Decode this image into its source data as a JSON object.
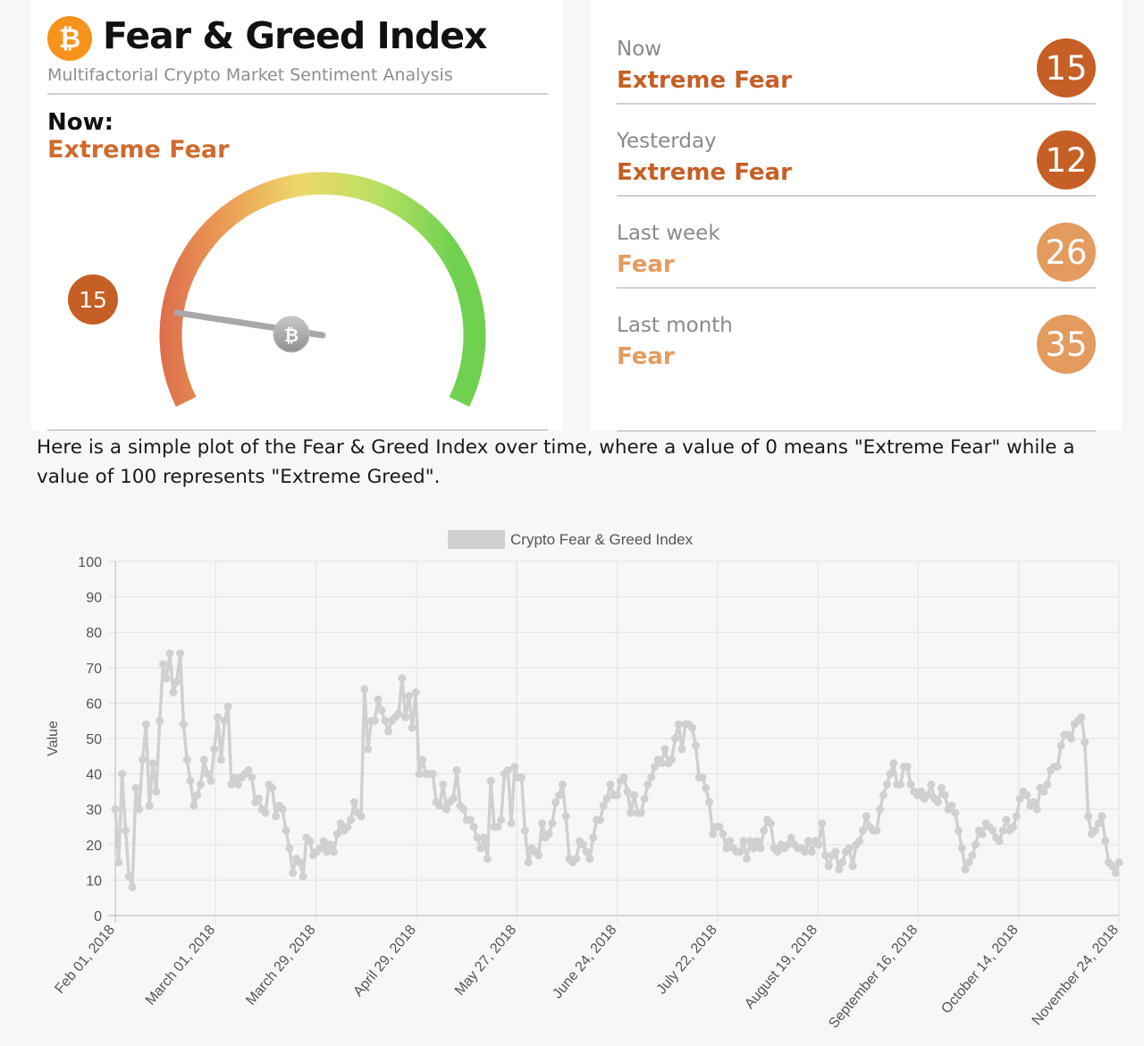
{
  "header": {
    "logo_symbol": "₿",
    "title": "Fear & Greed Index",
    "subtitle": "Multifactorial Crypto Market Sentiment Analysis",
    "now_label": "Now:",
    "now_classification": "Extreme Fear",
    "gauge_value": 15,
    "gauge_value_label": "15",
    "needle_icon_symbol": "₿"
  },
  "history": [
    {
      "label": "Now",
      "classification": "Extreme Fear",
      "value": "15",
      "color": "#c65f25"
    },
    {
      "label": "Yesterday",
      "classification": "Extreme Fear",
      "value": "12",
      "color": "#c65f25"
    },
    {
      "label": "Last week",
      "classification": "Fear",
      "value": "26",
      "color": "#e49b5e"
    },
    {
      "label": "Last month",
      "classification": "Fear",
      "value": "35",
      "color": "#e49b5e"
    }
  ],
  "description": "Here is a simple plot of the Fear & Greed Index over time, where a value of 0 means \"Extreme Fear\" while a value of 100 represents \"Extreme Greed\".",
  "colors": {
    "extreme_fear": "#c65f25",
    "fear": "#e49b5e",
    "series_line": "#d0d0d0"
  },
  "chart_data": {
    "type": "line",
    "legend": "Crypto Fear & Greed Index",
    "legend_position": "top-center",
    "ylabel": "Value",
    "xlabel": "",
    "ylim": [
      0,
      100
    ],
    "yticks": [
      0,
      10,
      20,
      30,
      40,
      50,
      60,
      70,
      80,
      90,
      100
    ],
    "grid": true,
    "start_date": "2018-02-01",
    "end_date": "2018-11-24",
    "xtick_labels": [
      "Feb 01, 2018",
      "March 01, 2018",
      "March 29, 2018",
      "April 29, 2018",
      "May 27, 2018",
      "June 24, 2018",
      "July 22, 2018",
      "August 19, 2018",
      "September 16, 2018",
      "October 14, 2018",
      "November 24, 2018"
    ],
    "series": [
      {
        "values": [
          30,
          15,
          40,
          24,
          11,
          8,
          36,
          30,
          44,
          54,
          31,
          43,
          35,
          55,
          71,
          67,
          74,
          63,
          66,
          74,
          54,
          44,
          38,
          31,
          34,
          37,
          44,
          40,
          38,
          47,
          56,
          44,
          55,
          59,
          37,
          39,
          37,
          39,
          40,
          41,
          39,
          32,
          33,
          30,
          29,
          37,
          36,
          28,
          31,
          30,
          24,
          19,
          12,
          16,
          15,
          11,
          22,
          21,
          17,
          18,
          19,
          21,
          18,
          20,
          18,
          23,
          26,
          24,
          25,
          27,
          32,
          29,
          28,
          64,
          47,
          55,
          55,
          61,
          58,
          55,
          52,
          55,
          56,
          57,
          67,
          56,
          62,
          53,
          63,
          40,
          44,
          40,
          40,
          40,
          32,
          31,
          37,
          30,
          32,
          33,
          41,
          31,
          30,
          27,
          27,
          25,
          22,
          19,
          22,
          16,
          38,
          25,
          25,
          27,
          40,
          41,
          26,
          42,
          39,
          39,
          24,
          15,
          19,
          18,
          17,
          26,
          22,
          23,
          26,
          32,
          34,
          37,
          28,
          16,
          15,
          16,
          21,
          20,
          18,
          16,
          22,
          27,
          27,
          31,
          33,
          37,
          34,
          34,
          38,
          39,
          35,
          29,
          34,
          29,
          29,
          33,
          37,
          39,
          42,
          44,
          43,
          47,
          43,
          44,
          50,
          54,
          47,
          54,
          54,
          53,
          48,
          39,
          39,
          36,
          32,
          23,
          25,
          25,
          23,
          19,
          21,
          19,
          18,
          18,
          21,
          16,
          21,
          19,
          21,
          19,
          24,
          27,
          26,
          19,
          18,
          20,
          19,
          20,
          22,
          20,
          19,
          19,
          18,
          21,
          18,
          21,
          20,
          26,
          17,
          14,
          17,
          18,
          13,
          15,
          18,
          19,
          14,
          20,
          21,
          24,
          28,
          25,
          24,
          24,
          30,
          34,
          37,
          40,
          43,
          37,
          37,
          42,
          42,
          37,
          35,
          34,
          35,
          33,
          34,
          37,
          33,
          32,
          36,
          34,
          30,
          31,
          29,
          24,
          19,
          13,
          15,
          17,
          20,
          24,
          23,
          26,
          25,
          24,
          22,
          21,
          24,
          27,
          24,
          25,
          28,
          33,
          35,
          34,
          31,
          32,
          30,
          36,
          35,
          37,
          41,
          42,
          42,
          48,
          51,
          51,
          50,
          54,
          55,
          56,
          49,
          28,
          23,
          24,
          26,
          28,
          21,
          15,
          14,
          12,
          15
        ]
      }
    ]
  }
}
